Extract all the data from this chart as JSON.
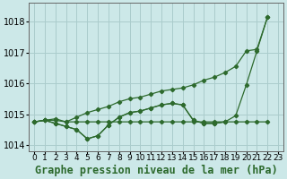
{
  "title": "Graphe pression niveau de la mer (hPa)",
  "hours": [
    0,
    1,
    2,
    3,
    4,
    5,
    6,
    7,
    8,
    9,
    10,
    11,
    12,
    13,
    14,
    15,
    16,
    17,
    18,
    19,
    20,
    21,
    22,
    23
  ],
  "line_flat": [
    1014.75,
    1014.8,
    1014.8,
    1014.75,
    1014.75,
    1014.75,
    1014.75,
    1014.75,
    1014.75,
    1014.75,
    1014.75,
    1014.75,
    1014.75,
    1014.75,
    1014.75,
    1014.75,
    1014.75,
    1014.75,
    1014.75,
    1014.75,
    1014.75,
    1014.75,
    1014.75,
    null
  ],
  "line_dip": [
    1014.75,
    1014.8,
    1014.7,
    1014.6,
    1014.5,
    1014.2,
    1014.3,
    1014.65,
    1014.9,
    1015.05,
    1015.1,
    1015.2,
    1015.3,
    1015.35,
    1015.3,
    1014.8,
    1014.7,
    1014.7,
    1014.75,
    null,
    null,
    null,
    null,
    null
  ],
  "line_rise": [
    1014.75,
    1014.8,
    1014.85,
    1014.75,
    1014.9,
    1015.05,
    1015.15,
    1015.25,
    1015.4,
    1015.5,
    1015.55,
    1015.65,
    1015.75,
    1015.8,
    1015.85,
    1015.95,
    1016.1,
    1016.2,
    1016.35,
    1016.55,
    1017.05,
    1017.1,
    1018.15,
    null
  ],
  "line_combo": [
    1014.75,
    1014.8,
    1014.7,
    1014.6,
    1014.5,
    1014.2,
    1014.3,
    1014.65,
    1014.9,
    1015.05,
    1015.1,
    1015.2,
    1015.3,
    1015.35,
    1015.3,
    1014.8,
    1014.7,
    1014.7,
    1014.75,
    1014.95,
    1015.95,
    1017.05,
    1018.15,
    null
  ],
  "ylim": [
    1013.8,
    1018.6
  ],
  "yticks": [
    1014,
    1015,
    1016,
    1017,
    1018
  ],
  "line_color": "#2d6a2d",
  "bg_color": "#cce8e8",
  "grid_color": "#aacccc",
  "title_fontsize": 8.5,
  "tick_fontsize": 6.5
}
